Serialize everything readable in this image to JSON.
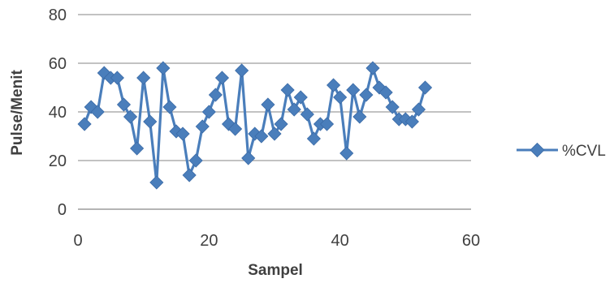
{
  "chart_data": {
    "type": "line",
    "xlabel": "Sampel",
    "ylabel": "Pulse/Menit",
    "xlim": [
      0,
      60
    ],
    "ylim": [
      0,
      80
    ],
    "xticks": [
      0,
      20,
      40,
      60
    ],
    "yticks": [
      0,
      20,
      40,
      60,
      80
    ],
    "grid": "horizontal",
    "legend_position": "right",
    "series": [
      {
        "name": "%CVL",
        "color": "#4a7ebb",
        "marker": "diamond",
        "x": [
          1,
          2,
          3,
          4,
          5,
          6,
          7,
          8,
          9,
          10,
          11,
          12,
          13,
          14,
          15,
          16,
          17,
          18,
          19,
          20,
          21,
          22,
          23,
          24,
          25,
          26,
          27,
          28,
          29,
          30,
          31,
          32,
          33,
          34,
          35,
          36,
          37,
          38,
          39,
          40,
          41,
          42,
          43,
          44,
          45,
          46,
          47,
          48,
          49,
          50,
          51,
          52,
          53
        ],
        "y": [
          35,
          42,
          40,
          56,
          54,
          54,
          43,
          38,
          25,
          54,
          36,
          11,
          58,
          42,
          32,
          31,
          14,
          20,
          34,
          40,
          47,
          54,
          35,
          33,
          57,
          21,
          31,
          30,
          43,
          31,
          35,
          49,
          41,
          46,
          39,
          29,
          35,
          35,
          51,
          46,
          23,
          49,
          38,
          47,
          58,
          50,
          48,
          42,
          37,
          37,
          36,
          41,
          50
        ]
      }
    ]
  }
}
